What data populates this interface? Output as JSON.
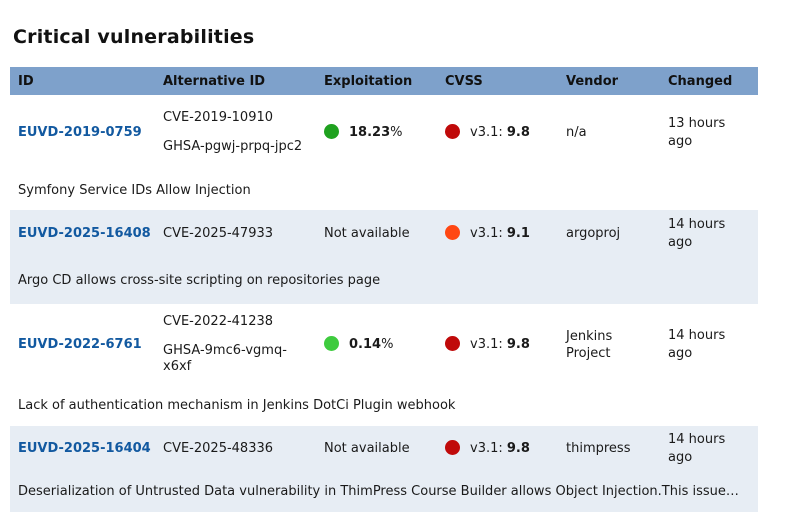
{
  "page": {
    "title": "Critical vulnerabilities"
  },
  "table": {
    "columns": [
      "ID",
      "Alternative ID",
      "Exploitation",
      "CVSS",
      "Vendor",
      "Changed"
    ],
    "colors": {
      "header_bg": "#7ea1cb",
      "row_alt_bg": "#e7edf4",
      "link": "#1259a0",
      "epss_dark_green": "#1fa11f",
      "epss_bright_green": "#3ecb3e",
      "cvss_dark_red": "#c00a0a",
      "cvss_orange": "#ff4713"
    },
    "rows": [
      {
        "id": "EUVD-2019-0759",
        "alt_ids": [
          "CVE-2019-10910",
          "GHSA-pgwj-prpq-jpc2"
        ],
        "exploitation": {
          "percent": "18.23",
          "suffix": "%",
          "dot_color": "#1fa11f"
        },
        "cvss": {
          "version": "v3.1:",
          "score": "9.8",
          "dot_color": "#c00a0a"
        },
        "vendor": "n/a",
        "changed": "13 hours ago",
        "description": "Symfony Service IDs Allow Injection",
        "highlighted": false
      },
      {
        "id": "EUVD-2025-16408",
        "alt_ids": [
          "CVE-2025-47933"
        ],
        "exploitation": {
          "text": "Not available"
        },
        "cvss": {
          "version": "v3.1:",
          "score": "9.1",
          "dot_color": "#ff4713"
        },
        "vendor": "argoproj",
        "changed": "14 hours ago",
        "description": "Argo CD allows cross-site scripting on repositories page",
        "highlighted": true
      },
      {
        "id": "EUVD-2022-6761",
        "alt_ids": [
          "CVE-2022-41238",
          "GHSA-9mc6-vgmq-x6xf"
        ],
        "exploitation": {
          "percent": "0.14",
          "suffix": "%",
          "dot_color": "#3ecb3e"
        },
        "cvss": {
          "version": "v3.1:",
          "score": "9.8",
          "dot_color": "#c00a0a"
        },
        "vendor": "Jenkins Project",
        "changed": "14 hours ago",
        "description": "Lack of authentication mechanism in Jenkins DotCi Plugin webhook",
        "highlighted": false
      },
      {
        "id": "EUVD-2025-16404",
        "alt_ids": [
          "CVE-2025-48336"
        ],
        "exploitation": {
          "text": "Not available"
        },
        "cvss": {
          "version": "v3.1:",
          "score": "9.8",
          "dot_color": "#c00a0a"
        },
        "vendor": "thimpress",
        "changed": "14 hours ago",
        "description": "Deserialization of Untrusted Data vulnerability in ThimPress Course Builder allows Object Injection.This issue…",
        "highlighted": true
      }
    ]
  }
}
